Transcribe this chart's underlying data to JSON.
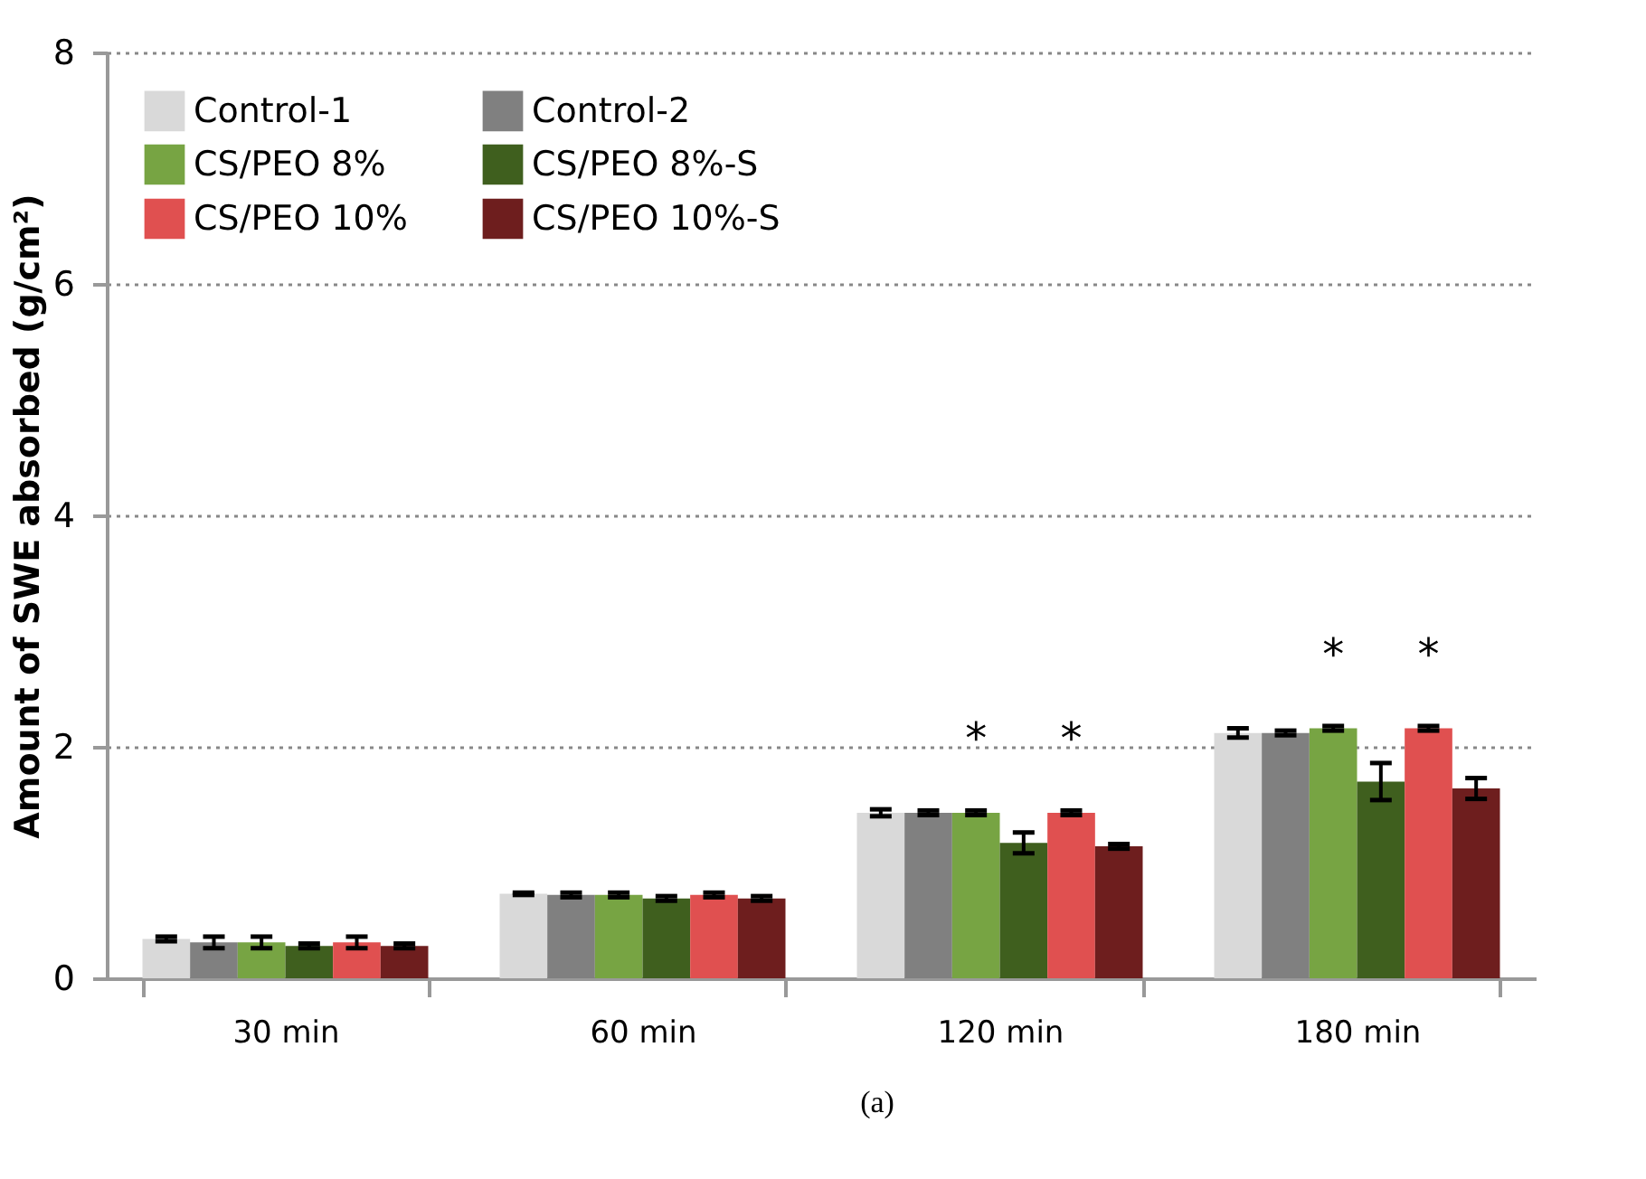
{
  "chart_data": {
    "type": "bar",
    "ylabel": "Amount of SWE absorbed (g/cm²)",
    "categories": [
      "30 min",
      "60 min",
      "120 min",
      "180 min"
    ],
    "series": [
      {
        "name": "Control-1",
        "color": "#d9d9d9",
        "values": [
          0.34,
          0.73,
          1.43,
          2.12
        ],
        "errors": [
          0.02,
          0.01,
          0.03,
          0.04
        ]
      },
      {
        "name": "Control-2",
        "color": "#808080",
        "values": [
          0.31,
          0.72,
          1.43,
          2.12
        ],
        "errors": [
          0.05,
          0.02,
          0.02,
          0.02
        ]
      },
      {
        "name": "CS/PEO 8%",
        "color": "#77a443",
        "values": [
          0.31,
          0.72,
          1.43,
          2.16
        ],
        "errors": [
          0.05,
          0.02,
          0.02,
          0.02
        ]
      },
      {
        "name": "CS/PEO 8%-S",
        "color": "#3f5f1e",
        "values": [
          0.28,
          0.69,
          1.17,
          1.7
        ],
        "errors": [
          0.02,
          0.02,
          0.09,
          0.16
        ]
      },
      {
        "name": "CS/PEO 10%",
        "color": "#e05050",
        "values": [
          0.31,
          0.72,
          1.43,
          2.16
        ],
        "errors": [
          0.05,
          0.02,
          0.02,
          0.02
        ]
      },
      {
        "name": "CS/PEO 10%-S",
        "color": "#6e1e1e",
        "values": [
          0.28,
          0.69,
          1.14,
          1.64
        ],
        "errors": [
          0.02,
          0.02,
          0.02,
          0.09
        ]
      }
    ],
    "ylim": [
      0,
      8
    ],
    "yticks": [
      0,
      2,
      4,
      6,
      8
    ],
    "grid": "y",
    "legend": "top left",
    "annotations": [
      {
        "text": "*",
        "x": "120 min",
        "y": 1.43
      },
      {
        "text": "*",
        "x": "120 min",
        "y": 1.43
      },
      {
        "text": "*",
        "x": "180 min",
        "y": 2.16
      },
      {
        "text": "*",
        "x": "180 min",
        "y": 2.16
      },
      "(a)"
    ]
  }
}
